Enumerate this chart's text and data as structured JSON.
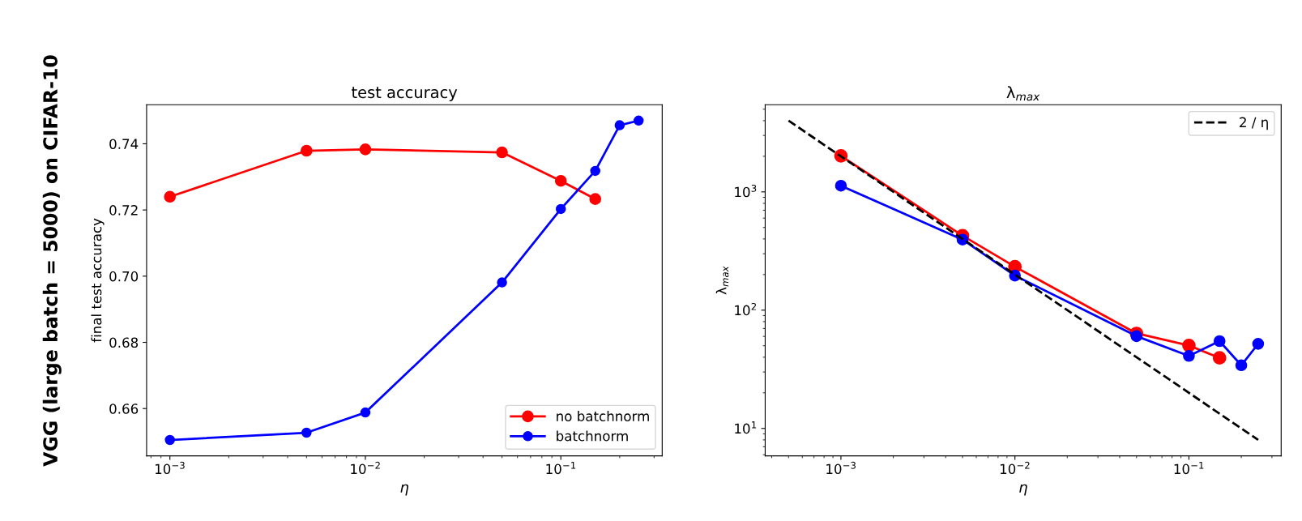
{
  "chart_data": [
    {
      "type": "line",
      "title": "test accuracy",
      "xlabel": "η",
      "ylabel": "final test accuracy",
      "annotations": [
        "VGG (large batch = 5000) on CIFAR-10"
      ],
      "log": "x",
      "grid": false,
      "legend": "lower right",
      "marker": "circle",
      "xlim": [
        0.00076,
        0.33
      ],
      "xticks": [
        {
          "value": 0.001,
          "label": "10$^{−3}$"
        },
        {
          "value": 0.01,
          "label": "10$^{−2}$"
        },
        {
          "value": 0.1,
          "label": "10$^{−1}$"
        }
      ],
      "ylim": [
        0.6457,
        0.7518
      ],
      "yticks": [
        {
          "value": 0.66,
          "label": "0.66"
        },
        {
          "value": 0.68,
          "label": "0.68"
        },
        {
          "value": 0.7,
          "label": "0.70"
        },
        {
          "value": 0.72,
          "label": "0.72"
        },
        {
          "value": 0.74,
          "label": "0.74"
        }
      ],
      "series": [
        {
          "name": "no batchnorm",
          "color": "#ff0000",
          "x": [
            0.001,
            0.005,
            0.01,
            0.05,
            0.1,
            0.15
          ],
          "values": [
            0.724,
            0.7379,
            0.7383,
            0.7374,
            0.7288,
            0.7233
          ]
        },
        {
          "name": "batchnorm",
          "color": "#0000ff",
          "x": [
            0.001,
            0.005,
            0.01,
            0.05,
            0.1,
            0.15,
            0.2,
            0.25
          ],
          "values": [
            0.6505,
            0.6527,
            0.6588,
            0.6981,
            0.7203,
            0.7318,
            0.7456,
            0.747
          ]
        }
      ]
    },
    {
      "type": "line",
      "title": "λ$_{max}$",
      "xlabel": "η",
      "ylabel": "λ$_{max}$",
      "log": "xy",
      "grid": false,
      "legend": "top right",
      "marker": "circle",
      "xlim": [
        0.000367,
        0.339
      ],
      "xticks": [
        {
          "value": 0.001,
          "label": "10$^{−3}$"
        },
        {
          "value": 0.01,
          "label": "10$^{−2}$"
        },
        {
          "value": 0.1,
          "label": "10$^{−1}$"
        }
      ],
      "ylim": [
        5.86,
        5457
      ],
      "yticks": [
        {
          "value": 10,
          "label": "10$^{1}$"
        },
        {
          "value": 100,
          "label": "10$^{2}$"
        },
        {
          "value": 1000,
          "label": "10$^{3}$"
        }
      ],
      "series": [
        {
          "color": "#ff0000",
          "x": [
            0.001,
            0.005,
            0.01,
            0.05,
            0.1,
            0.15
          ],
          "values": [
            2018,
            426,
            233,
            63.6,
            50.3,
            39.5
          ]
        },
        {
          "color": "#0000ff",
          "x": [
            0.001,
            0.005,
            0.01,
            0.05,
            0.1,
            0.15,
            0.2,
            0.25
          ],
          "values": [
            1128,
            395,
            196,
            60.3,
            41,
            54.7,
            34.2,
            51.9
          ]
        },
        {
          "name": "2 / η",
          "color": "#000000",
          "marker": "none",
          "line_style": "dashed",
          "x": [
            0.0005,
            0.25
          ],
          "values": [
            4000,
            8
          ]
        }
      ]
    }
  ]
}
